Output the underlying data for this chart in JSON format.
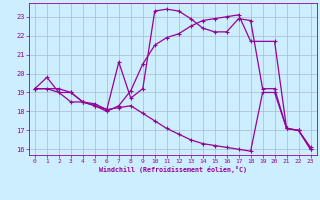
{
  "title": "",
  "xlabel": "Windchill (Refroidissement éolien,°C)",
  "bg_color": "#cceeff",
  "grid_color": "#aabbcc",
  "line_color": "#990099",
  "xlim": [
    -0.5,
    23.5
  ],
  "ylim": [
    15.7,
    23.7
  ],
  "xticks": [
    0,
    1,
    2,
    3,
    4,
    5,
    6,
    7,
    8,
    9,
    10,
    11,
    12,
    13,
    14,
    15,
    16,
    17,
    18,
    19,
    20,
    21,
    22,
    23
  ],
  "yticks": [
    16,
    17,
    18,
    19,
    20,
    21,
    22,
    23
  ],
  "line1_x": [
    0,
    1,
    2,
    3,
    4,
    5,
    6,
    7,
    8,
    9,
    10,
    11,
    12,
    13,
    14,
    15,
    16,
    17,
    18,
    19,
    20,
    21,
    22,
    23
  ],
  "line1_y": [
    19.2,
    19.8,
    19.0,
    19.0,
    18.5,
    18.4,
    18.1,
    20.6,
    18.7,
    19.2,
    23.3,
    23.4,
    23.3,
    22.9,
    22.4,
    22.2,
    22.2,
    22.9,
    22.8,
    19.2,
    19.2,
    17.1,
    17.0,
    16.0
  ],
  "line2_x": [
    0,
    2,
    3,
    4,
    5,
    6,
    7,
    8,
    9,
    10,
    11,
    12,
    13,
    14,
    15,
    16,
    17,
    18,
    20,
    21,
    22,
    23
  ],
  "line2_y": [
    19.2,
    19.2,
    19.0,
    18.5,
    18.3,
    18.0,
    18.3,
    19.1,
    20.5,
    21.5,
    21.9,
    22.1,
    22.5,
    22.8,
    22.9,
    23.0,
    23.1,
    21.7,
    21.7,
    17.1,
    17.0,
    16.1
  ],
  "line3_x": [
    0,
    1,
    2,
    3,
    4,
    5,
    6,
    7,
    8,
    9,
    10,
    11,
    12,
    13,
    14,
    15,
    16,
    17,
    18,
    19,
    20,
    21,
    22,
    23
  ],
  "line3_y": [
    19.2,
    19.2,
    19.0,
    18.5,
    18.5,
    18.3,
    18.1,
    18.2,
    18.3,
    17.9,
    17.5,
    17.1,
    16.8,
    16.5,
    16.3,
    16.2,
    16.1,
    16.0,
    15.9,
    19.0,
    19.0,
    17.1,
    17.0,
    16.0
  ]
}
